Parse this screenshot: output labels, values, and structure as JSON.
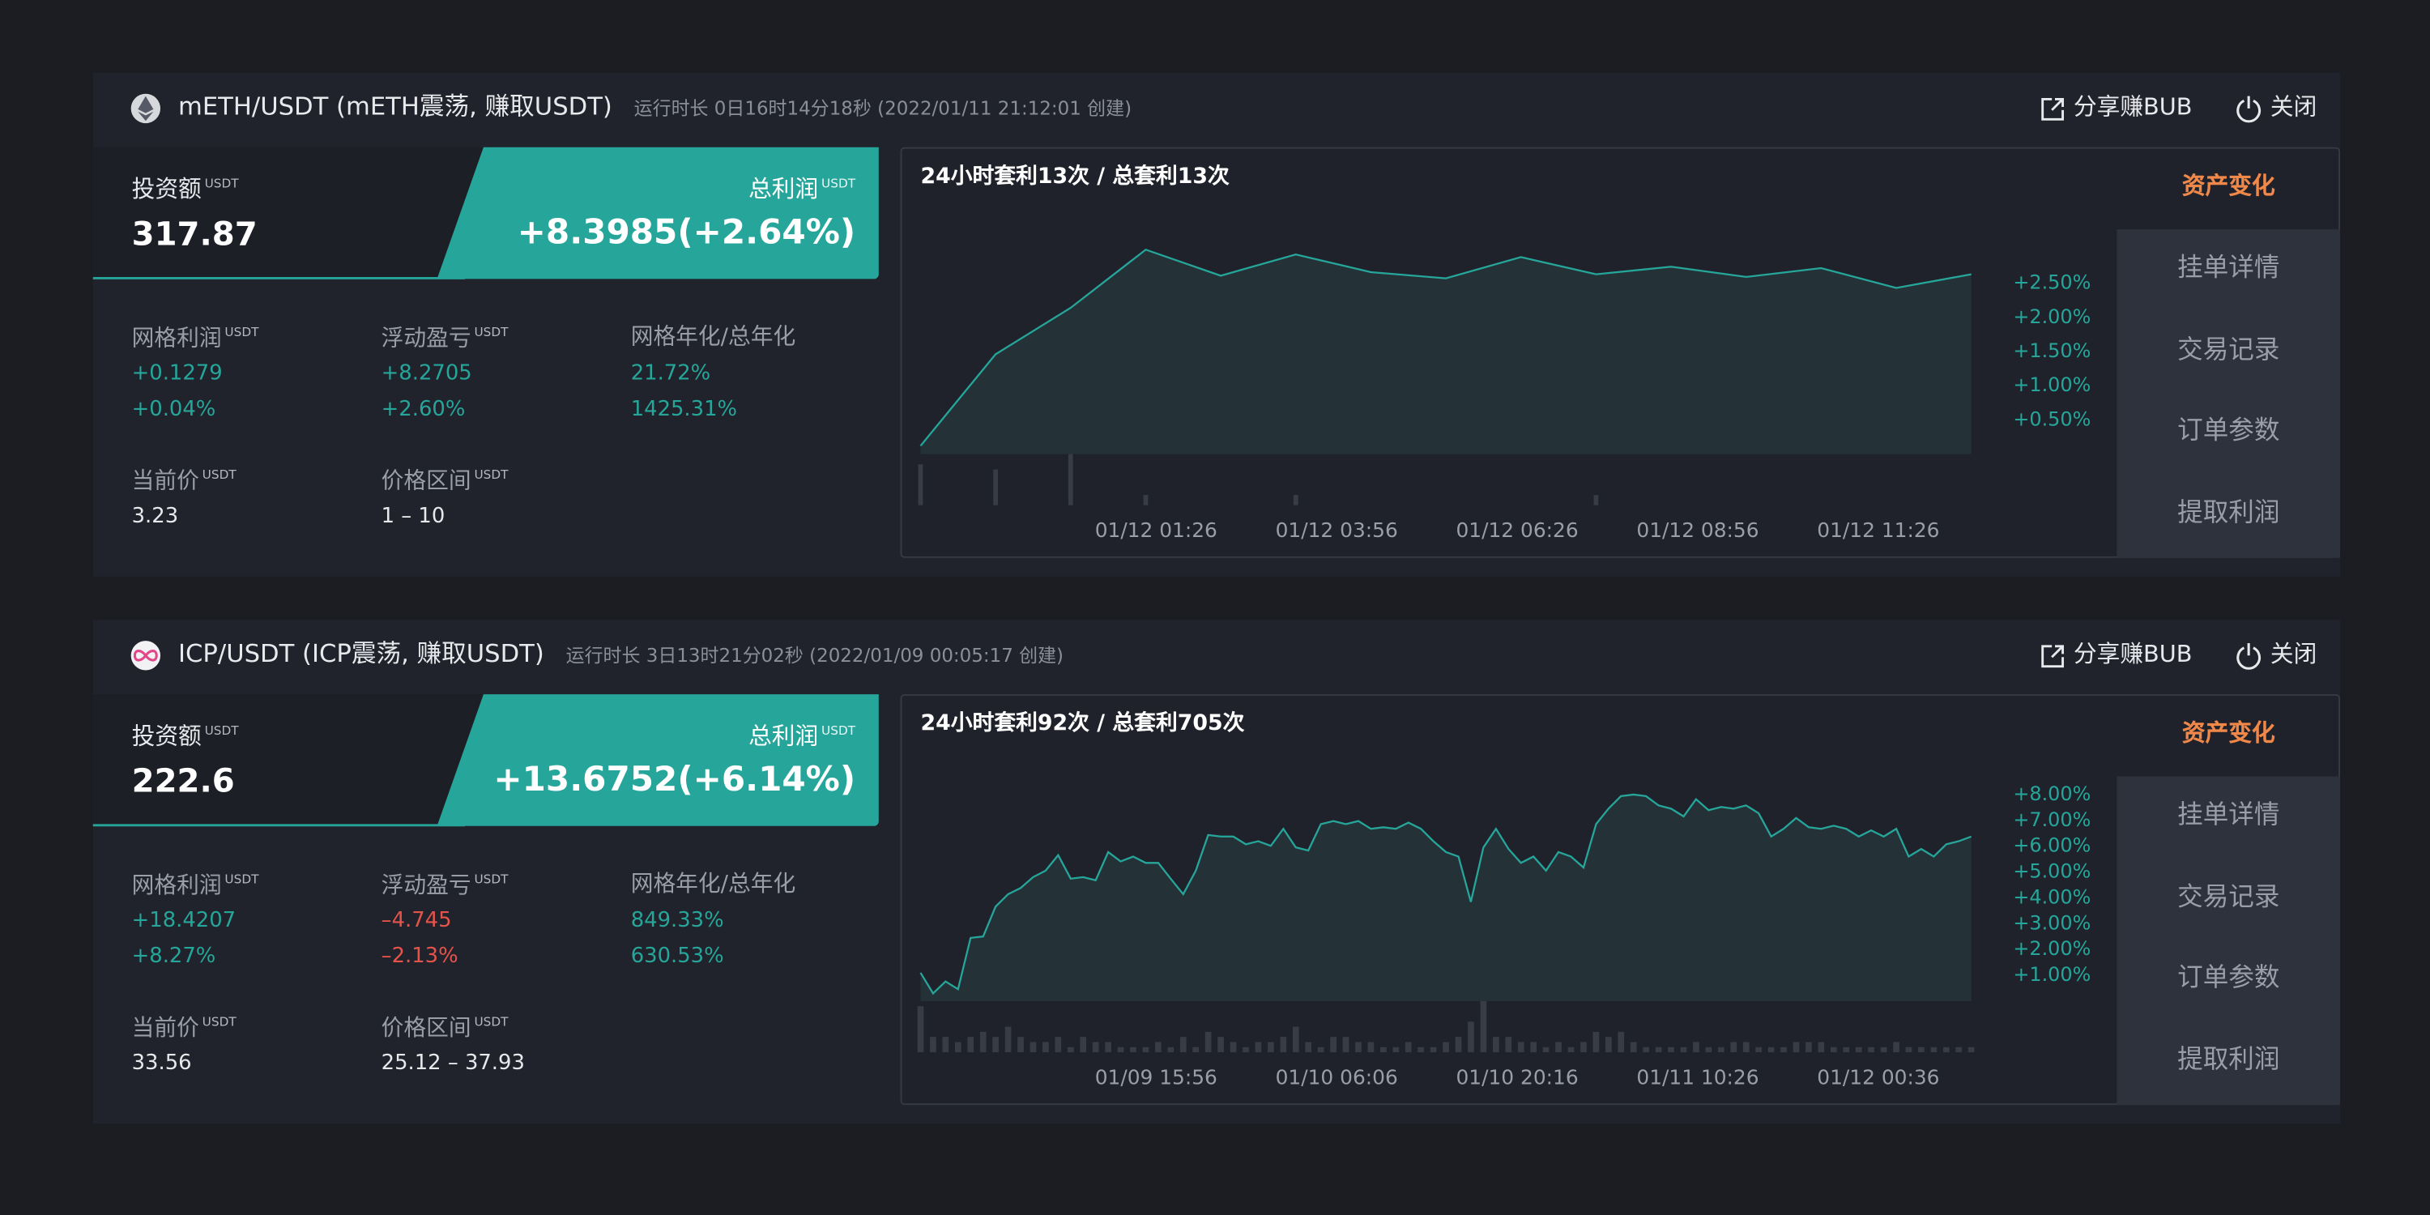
{
  "bots": [
    {
      "title": "mETH/USDT (mETH震荡, 赚取USDT)",
      "runtime": "运行时长 0日16时14分18秒 (2022/01/11 21:12:01 创建)",
      "share": "分享赚BUB",
      "close": "关闭",
      "invest": {
        "label": "投资额",
        "unit": "USDT",
        "value": "317.87"
      },
      "profit": {
        "label": "总利润",
        "unit": "USDT",
        "value": "+8.3985(+2.64%)"
      },
      "stats": [
        {
          "label": "网格利润",
          "unit": "USDT",
          "lines": [
            "+0.1279",
            "+0.04%"
          ],
          "color": "#26a69a"
        },
        {
          "label": "浮动盈亏",
          "unit": "USDT",
          "lines": [
            "+8.2705",
            "+2.60%"
          ],
          "color": "#26a69a"
        },
        {
          "label": "网格年化/总年化",
          "lines": [
            "21.72%",
            "1425.31%"
          ],
          "color": "#26a69a"
        },
        {
          "label": "当前价",
          "unit": "USDT",
          "lines": [
            "3.23"
          ],
          "color": "#e8e9ec"
        },
        {
          "label": "价格区间",
          "unit": "USDT",
          "lines": [
            "1 – 10"
          ],
          "color": "#e8e9ec"
        }
      ],
      "tab": "资产变化",
      "menu": [
        "挂单详情",
        "交易记录",
        "订单参数",
        "提取利润"
      ],
      "chart_data": {
        "type": "area",
        "title": "24小时套利13次 / 总套利13次",
        "series": [
          {
            "color": "#26a69a",
            "values": [
              0.12,
              1.46,
              2.14,
              2.99,
              2.61,
              2.92,
              2.66,
              2.57,
              2.88,
              2.63,
              2.74,
              2.59,
              2.72,
              2.43,
              2.63
            ]
          }
        ],
        "volume": [
          8,
          7,
          10,
          2,
          null,
          2,
          null,
          null,
          null,
          2,
          null,
          null,
          null,
          null,
          null
        ],
        "volume_lim": [
          0,
          10
        ],
        "ylim": [
          0,
          3.4
        ],
        "yticks": [
          {
            "value": 0.5,
            "label": "+0.50%"
          },
          {
            "value": 1,
            "label": "+1.00%"
          },
          {
            "value": 1.5,
            "label": "+1.50%"
          },
          {
            "value": 2,
            "label": "+2.00%"
          },
          {
            "value": 2.5,
            "label": "+2.50%"
          }
        ],
        "x_labels": [
          "01/12 01:26",
          "01/12 03:56",
          "01/12 06:26",
          "01/12 08:56",
          "01/12 11:26"
        ]
      }
    },
    {
      "title": "ICP/USDT (ICP震荡, 赚取USDT)",
      "runtime": "运行时长 3日13时21分02秒 (2022/01/09 00:05:17 创建)",
      "share": "分享赚BUB",
      "close": "关闭",
      "invest": {
        "label": "投资额",
        "unit": "USDT",
        "value": "222.6"
      },
      "profit": {
        "label": "总利润",
        "unit": "USDT",
        "value": "+13.6752(+6.14%)"
      },
      "stats": [
        {
          "label": "网格利润",
          "unit": "USDT",
          "lines": [
            "+18.4207",
            "+8.27%"
          ],
          "color": "#26a69a"
        },
        {
          "label": "浮动盈亏",
          "unit": "USDT",
          "lines": [
            "–4.745",
            "–2.13%"
          ],
          "color": "#e5534b"
        },
        {
          "label": "网格年化/总年化",
          "lines": [
            "849.33%",
            "630.53%"
          ],
          "color": "#26a69a"
        },
        {
          "label": "当前价",
          "unit": "USDT",
          "lines": [
            "33.56"
          ],
          "color": "#e8e9ec"
        },
        {
          "label": "价格区间",
          "unit": "USDT",
          "lines": [
            "25.12 – 37.93"
          ],
          "color": "#e8e9ec"
        }
      ],
      "tab": "资产变化",
      "menu": [
        "挂单详情",
        "交易记录",
        "订单参数",
        "提取利润"
      ],
      "chart_data": {
        "type": "area",
        "title": "24小时套利92次 / 总套利705次",
        "series": [
          {
            "color": "#26a69a",
            "values": [
              1.1,
              0.3,
              0.76,
              0.46,
              2.45,
              2.5,
              3.66,
              4.14,
              4.38,
              4.8,
              5.05,
              5.65,
              4.74,
              4.8,
              4.68,
              5.77,
              5.41,
              5.6,
              5.35,
              5.35,
              4.74,
              4.14,
              5.05,
              6.43,
              6.37,
              6.37,
              6.07,
              6.19,
              6.01,
              6.67,
              5.95,
              5.83,
              6.85,
              6.97,
              6.85,
              6.97,
              6.67,
              6.73,
              6.67,
              6.91,
              6.67,
              6.19,
              5.77,
              5.6,
              3.84,
              5.95,
              6.67,
              5.89,
              5.35,
              5.6,
              5.05,
              5.77,
              5.6,
              5.17,
              6.85,
              7.45,
              7.94,
              8.0,
              7.94,
              7.58,
              7.45,
              7.15,
              7.82,
              7.39,
              7.52,
              7.45,
              7.58,
              7.27,
              6.37,
              6.67,
              7.09,
              6.73,
              6.67,
              6.79,
              6.67,
              6.37,
              6.61,
              6.37,
              6.67,
              5.6,
              5.89,
              5.6,
              6.07,
              6.19,
              6.37
            ]
          }
        ],
        "volume": [
          9,
          3,
          3,
          2,
          3,
          4,
          3,
          5,
          3,
          2,
          2,
          3,
          1,
          3,
          2,
          2,
          1,
          1,
          1,
          2,
          1,
          3,
          1,
          4,
          3,
          2,
          1,
          2,
          2,
          3,
          5,
          2,
          1,
          3,
          3,
          2,
          2,
          1,
          1,
          2,
          1,
          1,
          2,
          3,
          6,
          10,
          3,
          3,
          2,
          2,
          1,
          2,
          1,
          2,
          4,
          3,
          4,
          2,
          1,
          1,
          1,
          1,
          2,
          1,
          1,
          2,
          2,
          1,
          1,
          1,
          2,
          2,
          2,
          1,
          1,
          1,
          1,
          1,
          2,
          1,
          1,
          1,
          1,
          1,
          1
        ],
        "volume_lim": [
          0,
          10
        ],
        "ylim": [
          0,
          9
        ],
        "yticks": [
          {
            "value": 1,
            "label": "+1.00%"
          },
          {
            "value": 2,
            "label": "+2.00%"
          },
          {
            "value": 3,
            "label": "+3.00%"
          },
          {
            "value": 4,
            "label": "+4.00%"
          },
          {
            "value": 5,
            "label": "+5.00%"
          },
          {
            "value": 6,
            "label": "+6.00%"
          },
          {
            "value": 7,
            "label": "+7.00%"
          },
          {
            "value": 8,
            "label": "+8.00%"
          }
        ],
        "x_labels": [
          "01/09 15:56",
          "01/10 06:06",
          "01/10 20:16",
          "01/11 10:26",
          "01/12 00:36"
        ]
      }
    }
  ]
}
